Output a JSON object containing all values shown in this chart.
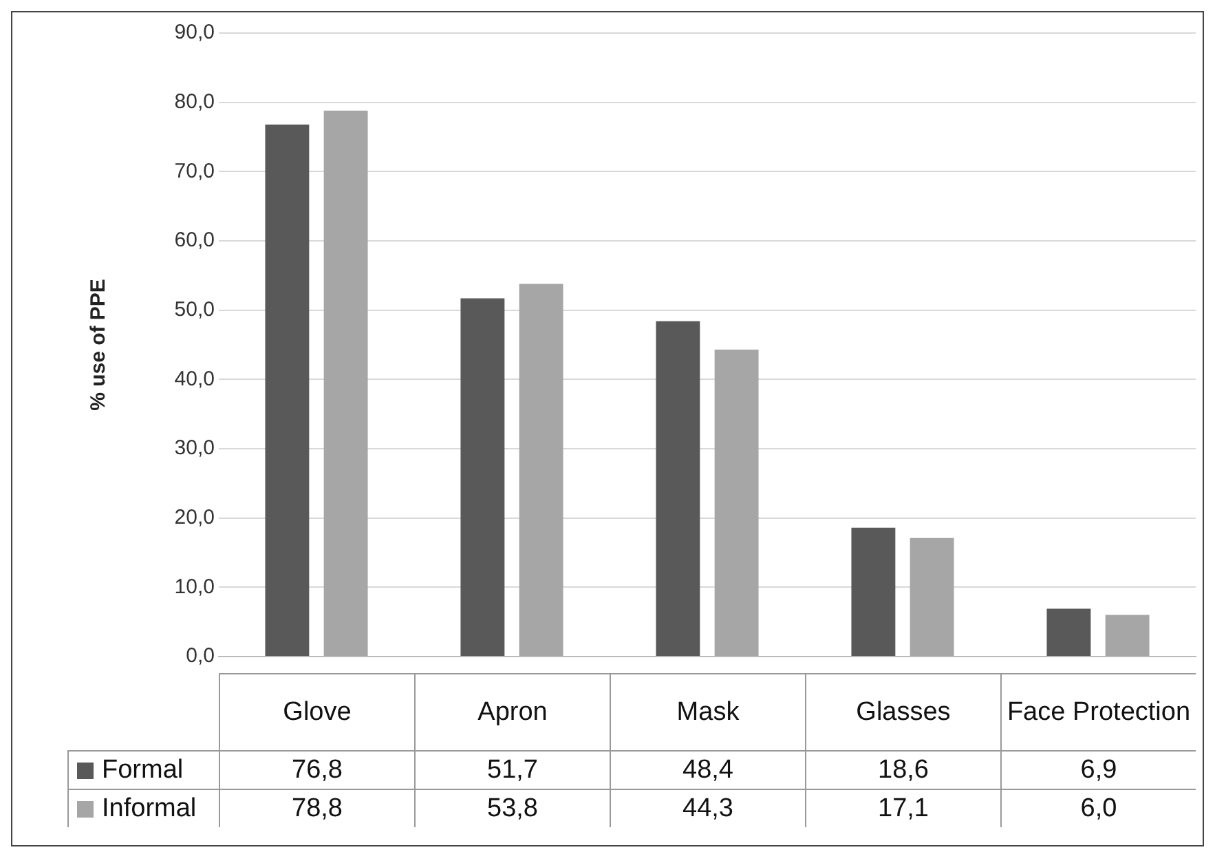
{
  "chart_data": {
    "type": "bar",
    "ylabel": "% use of PPE",
    "categories": [
      "Glove",
      "Apron",
      "Mask",
      "Glasses",
      "Face Protection"
    ],
    "series": [
      {
        "name": "Formal",
        "color": "#595959",
        "values": [
          76.8,
          51.7,
          48.4,
          18.6,
          6.9
        ],
        "value_labels": [
          "76,8",
          "51,7",
          "48,4",
          "18,6",
          "6,9"
        ]
      },
      {
        "name": "Informal",
        "color": "#a6a6a6",
        "values": [
          78.8,
          53.8,
          44.3,
          17.1,
          6.0
        ],
        "value_labels": [
          "78,8",
          "53,8",
          "44,3",
          "17,1",
          "6,0"
        ]
      }
    ],
    "ylim": [
      0,
      90
    ],
    "yticks": [
      {
        "value": 0,
        "label": "0,0"
      },
      {
        "value": 10,
        "label": "10,0"
      },
      {
        "value": 20,
        "label": "20,0"
      },
      {
        "value": 30,
        "label": "30,0"
      },
      {
        "value": 40,
        "label": "40,0"
      },
      {
        "value": 50,
        "label": "50,0"
      },
      {
        "value": 60,
        "label": "60,0"
      },
      {
        "value": 70,
        "label": "70,0"
      },
      {
        "value": 80,
        "label": "80,0"
      },
      {
        "value": 90,
        "label": "90,0"
      }
    ],
    "grid": "y",
    "legend": "bottom left"
  }
}
